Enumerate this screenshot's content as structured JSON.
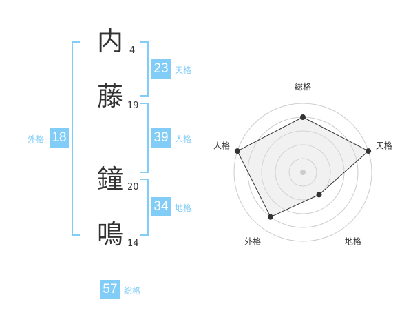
{
  "name": [
    {
      "char": "内",
      "strokes": "4"
    },
    {
      "char": "藤",
      "strokes": "19"
    },
    {
      "char": "鐘",
      "strokes": "20"
    },
    {
      "char": "鳴",
      "strokes": "14"
    }
  ],
  "kaku": {
    "tenkaku": {
      "value": "23",
      "label": "天格"
    },
    "jinkaku": {
      "value": "39",
      "label": "人格"
    },
    "chikaku": {
      "value": "34",
      "label": "地格"
    },
    "gaikaku": {
      "value": "18",
      "label": "外格"
    },
    "soukaku": {
      "value": "57",
      "label": "総格"
    }
  },
  "colors": {
    "accent": "#82cdf7",
    "text": "#333333"
  },
  "chart_data": {
    "type": "radar",
    "axes": [
      "総格",
      "天格",
      "地格",
      "外格",
      "人格"
    ],
    "values": [
      4,
      5,
      2,
      4,
      5
    ],
    "range": [
      0,
      5
    ],
    "rings": 5
  }
}
